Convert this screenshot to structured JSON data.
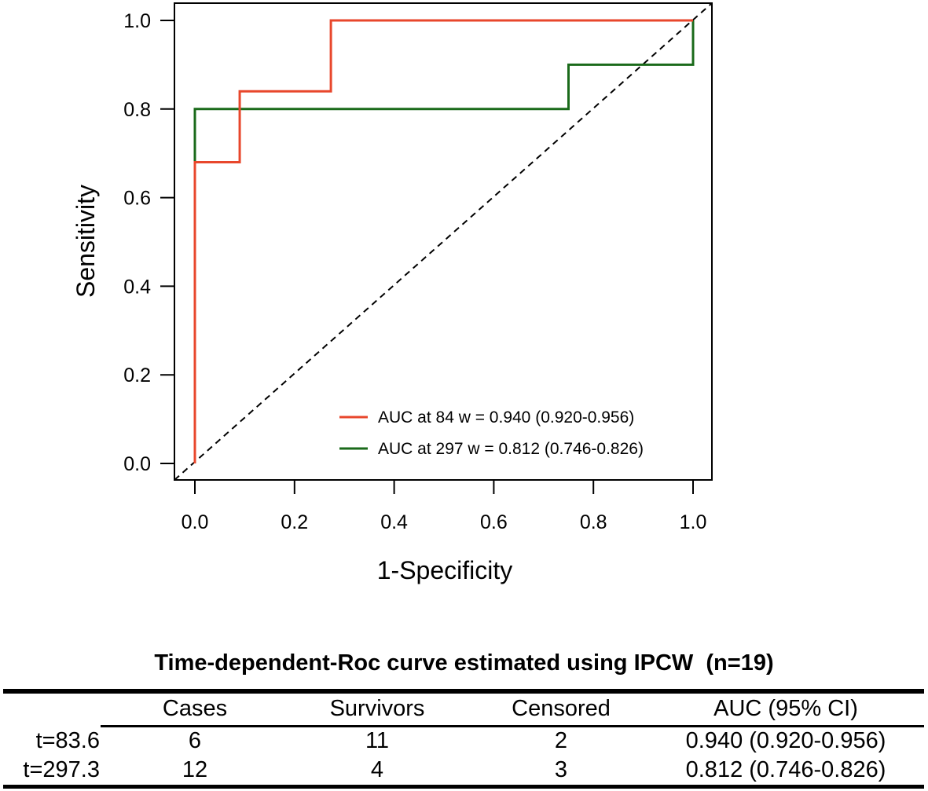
{
  "chart_data": {
    "type": "line",
    "title": "",
    "xlabel": "1-Specificity",
    "ylabel": "Sensitivity",
    "xlim": [
      0,
      1
    ],
    "ylim": [
      0,
      1
    ],
    "x_ticks": [
      "0.0",
      "0.2",
      "0.4",
      "0.6",
      "0.8",
      "1.0"
    ],
    "y_ticks": [
      "0.0",
      "0.2",
      "0.4",
      "0.6",
      "0.8",
      "1.0"
    ],
    "legend_position": "bottom-right",
    "reference_line": {
      "name": "chance diagonal",
      "style": "dashed",
      "x": [
        0,
        1
      ],
      "y": [
        0,
        1
      ]
    },
    "series": [
      {
        "name": "AUC at 84 w = 0.940 (0.920-0.956)",
        "color": "#e8472c",
        "x": [
          0,
          0,
          0.09,
          0.09,
          0.273,
          0.273,
          1
        ],
        "y": [
          0,
          0.68,
          0.68,
          0.84,
          0.84,
          1.0,
          1.0
        ]
      },
      {
        "name": "AUC at 297 w = 0.812 (0.746-0.826)",
        "color": "#1a6a1a",
        "x": [
          0,
          0,
          0.75,
          0.75,
          1,
          1
        ],
        "y": [
          0,
          0.8,
          0.8,
          0.9,
          0.9,
          1.0
        ]
      }
    ]
  },
  "table": {
    "title": "Time-dependent-Roc curve estimated using IPCW  (n=19)",
    "headers": [
      "Cases",
      "Survivors",
      "Censored",
      "AUC (95% CI)"
    ],
    "rows": [
      {
        "label": "t=83.6",
        "cells": [
          "6",
          "11",
          "2",
          "0.940 (0.920-0.956)"
        ]
      },
      {
        "label": "t=297.3",
        "cells": [
          "12",
          "4",
          "3",
          "0.812 (0.746-0.826)"
        ]
      }
    ]
  }
}
